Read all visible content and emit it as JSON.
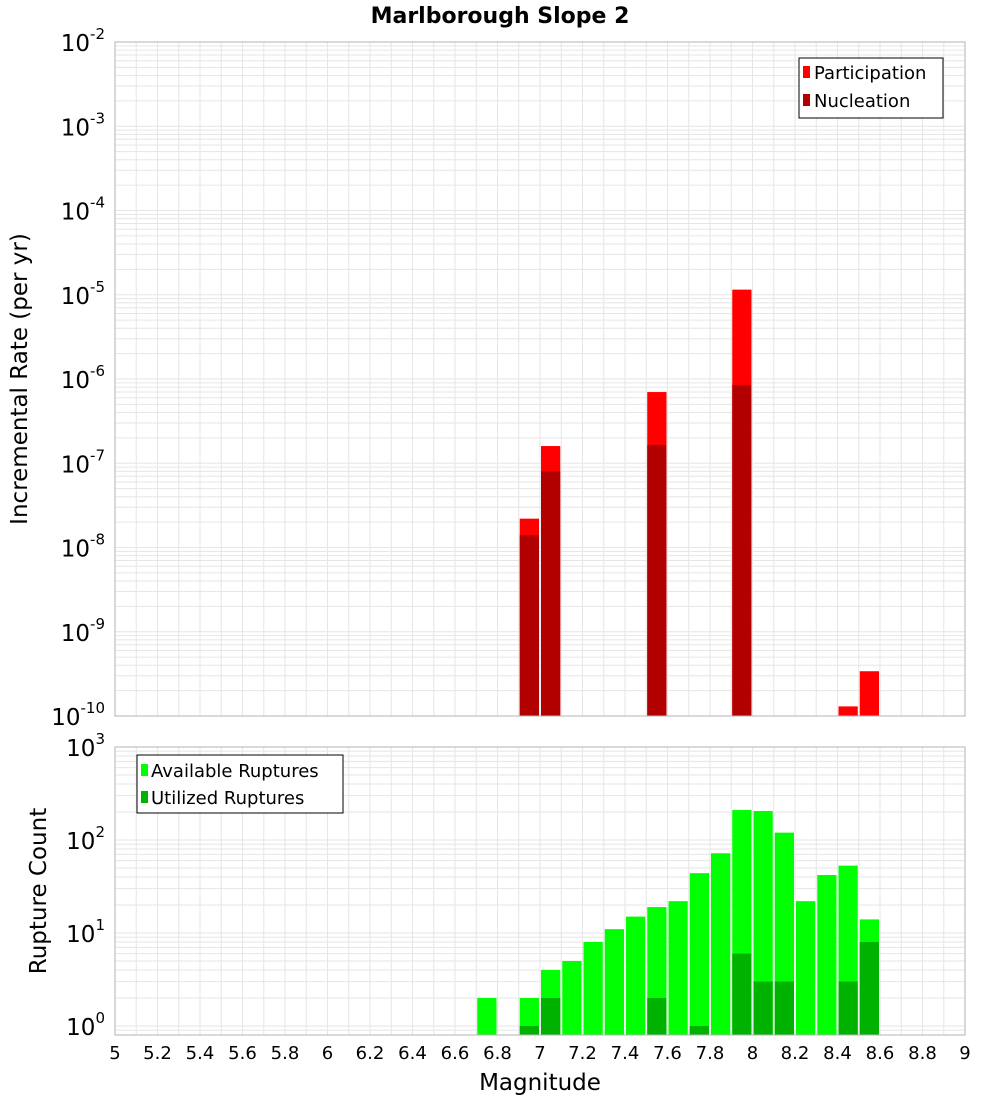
{
  "title": "Marlborough Slope 2",
  "colors": {
    "participation": "#ff0000",
    "nucleation": "#b20000",
    "available": "#00ff00",
    "utilized": "#00b200",
    "grid": "#e6e6e6",
    "frame": "#b3b3b3"
  },
  "chart_data": [
    {
      "type": "bar",
      "log_y": true,
      "ylabel": "Incremental Rate (per yr)",
      "xlabel": "",
      "xlim": [
        5,
        9
      ],
      "ylim": [
        1e-10,
        0.01
      ],
      "y_exponents": [
        "-2",
        "-3",
        "-4",
        "-5",
        "-6",
        "-7",
        "-8",
        "-9",
        "-10"
      ],
      "legend_position": "top-right",
      "bin_width": 0.1,
      "grid": true,
      "series": [
        {
          "name": "Participation",
          "x": [
            6.95,
            7.05,
            7.55,
            7.95,
            8.45,
            8.55
          ],
          "values": [
            2.2e-08,
            1.6e-07,
            7e-07,
            1.15e-05,
            1.3e-10,
            3.4e-10
          ]
        },
        {
          "name": "Nucleation",
          "x": [
            6.95,
            7.05,
            7.55,
            7.95
          ],
          "values": [
            1.4e-08,
            8e-08,
            1.65e-07,
            8.5e-07
          ]
        }
      ]
    },
    {
      "type": "bar",
      "log_y": true,
      "ylabel": "Rupture Count",
      "xlabel": "Magnitude",
      "xlim": [
        5,
        9
      ],
      "ylim": [
        0.8,
        1000
      ],
      "y_exponents": [
        "3",
        "2",
        "1",
        "0"
      ],
      "x_ticks": [
        "5",
        "5.2",
        "5.4",
        "5.6",
        "5.8",
        "6",
        "6.2",
        "6.4",
        "6.6",
        "6.8",
        "7",
        "7.2",
        "7.4",
        "7.6",
        "7.8",
        "8",
        "8.2",
        "8.4",
        "8.6",
        "8.8",
        "9"
      ],
      "legend_position": "top-left",
      "bin_width": 0.1,
      "grid": true,
      "series": [
        {
          "name": "Available Ruptures",
          "x": [
            6.75,
            6.95,
            7.05,
            7.15,
            7.25,
            7.35,
            7.45,
            7.55,
            7.65,
            7.75,
            7.85,
            7.95,
            8.05,
            8.15,
            8.25,
            8.35,
            8.45,
            8.55
          ],
          "values": [
            2,
            2,
            4,
            5,
            8,
            11,
            15,
            19,
            22,
            44,
            72,
            210,
            205,
            120,
            22,
            42,
            53,
            14
          ]
        },
        {
          "name": "Utilized Ruptures",
          "x": [
            6.95,
            7.05,
            7.55,
            7.75,
            7.95,
            8.05,
            8.15,
            8.45,
            8.55
          ],
          "values": [
            1,
            2,
            2,
            1,
            6,
            3,
            3,
            3,
            8
          ]
        }
      ]
    }
  ]
}
